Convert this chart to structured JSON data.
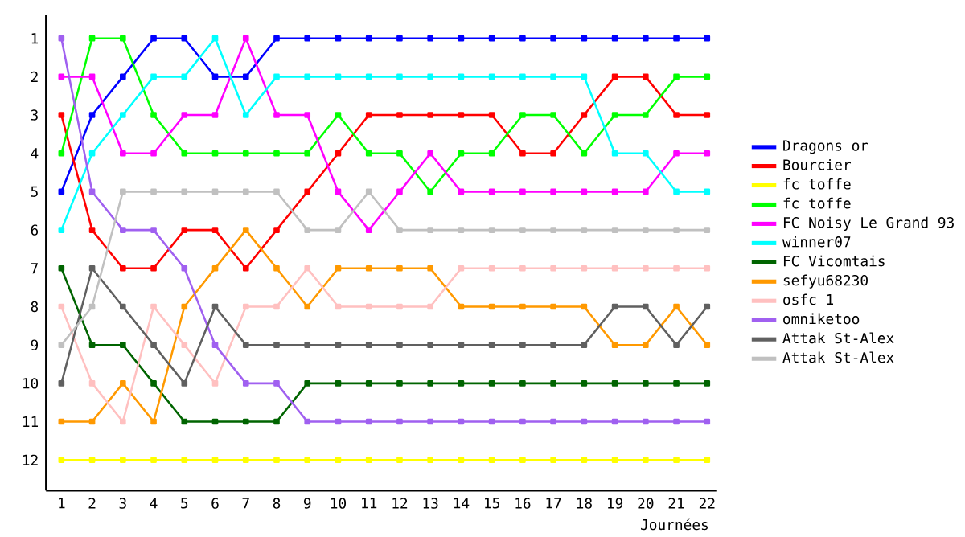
{
  "chart_data": {
    "type": "line",
    "xlabel": "Journées",
    "x": [
      1,
      2,
      3,
      4,
      5,
      6,
      7,
      8,
      9,
      10,
      11,
      12,
      13,
      14,
      15,
      16,
      17,
      18,
      19,
      20,
      21,
      22
    ],
    "xlim": [
      0.5,
      22.3
    ],
    "xticks": [
      1,
      2,
      3,
      4,
      5,
      6,
      7,
      8,
      9,
      10,
      11,
      12,
      13,
      14,
      15,
      16,
      17,
      18,
      19,
      20,
      21,
      22
    ],
    "ylim": [
      12.8,
      0.4
    ],
    "yticks": [
      1,
      2,
      3,
      4,
      5,
      6,
      7,
      8,
      9,
      10,
      11,
      12
    ],
    "marker": "square",
    "line_style": "solid",
    "legend": "right",
    "grid": false,
    "series": [
      {
        "name": "Dragons or",
        "color": "#0000ff",
        "values": [
          5,
          3,
          2,
          1,
          1,
          2,
          2,
          1,
          1,
          1,
          1,
          1,
          1,
          1,
          1,
          1,
          1,
          1,
          1,
          1,
          1,
          1
        ]
      },
      {
        "name": "Bourcier",
        "color": "#ff0000",
        "values": [
          3,
          6,
          7,
          7,
          6,
          6,
          7,
          6,
          5,
          4,
          3,
          3,
          3,
          3,
          3,
          4,
          4,
          3,
          2,
          2,
          3,
          3
        ]
      },
      {
        "name": "fc toffe",
        "color": "#ffff00",
        "values": [
          12,
          12,
          12,
          12,
          12,
          12,
          12,
          12,
          12,
          12,
          12,
          12,
          12,
          12,
          12,
          12,
          12,
          12,
          12,
          12,
          12,
          12
        ]
      },
      {
        "name": "fc toffe",
        "color": "#00ff00",
        "values": [
          4,
          1,
          1,
          3,
          4,
          4,
          4,
          4,
          4,
          3,
          4,
          4,
          5,
          4,
          4,
          3,
          3,
          4,
          3,
          3,
          2,
          2
        ]
      },
      {
        "name": "FC Noisy Le Grand 93",
        "color": "#ff00ff",
        "values": [
          2,
          2,
          4,
          4,
          3,
          3,
          1,
          3,
          3,
          5,
          6,
          5,
          4,
          5,
          5,
          5,
          5,
          5,
          5,
          5,
          4,
          4
        ]
      },
      {
        "name": "winner07",
        "color": "#00ffff",
        "values": [
          6,
          4,
          3,
          2,
          2,
          1,
          3,
          2,
          2,
          2,
          2,
          2,
          2,
          2,
          2,
          2,
          2,
          2,
          4,
          4,
          5,
          5
        ]
      },
      {
        "name": "FC Vicomtais",
        "color": "#006400",
        "values": [
          7,
          9,
          9,
          10,
          11,
          11,
          11,
          11,
          10,
          10,
          10,
          10,
          10,
          10,
          10,
          10,
          10,
          10,
          10,
          10,
          10,
          10
        ]
      },
      {
        "name": "sefyu68230",
        "color": "#ff9900",
        "values": [
          11,
          11,
          10,
          11,
          8,
          7,
          6,
          7,
          8,
          7,
          7,
          7,
          7,
          8,
          8,
          8,
          8,
          8,
          9,
          9,
          8,
          9
        ]
      },
      {
        "name": "osfc 1",
        "color": "#ffc0c0",
        "values": [
          8,
          10,
          11,
          8,
          9,
          10,
          8,
          8,
          7,
          8,
          8,
          8,
          8,
          7,
          7,
          7,
          7,
          7,
          7,
          7,
          7,
          7
        ]
      },
      {
        "name": "omniketoo",
        "color": "#a060f0",
        "values": [
          1,
          5,
          6,
          6,
          7,
          9,
          10,
          10,
          11,
          11,
          11,
          11,
          11,
          11,
          11,
          11,
          11,
          11,
          11,
          11,
          11,
          11
        ]
      },
      {
        "name": "Attak St-Alex",
        "color": "#606060",
        "values": [
          10,
          7,
          8,
          9,
          10,
          8,
          9,
          9,
          9,
          9,
          9,
          9,
          9,
          9,
          9,
          9,
          9,
          9,
          8,
          8,
          9,
          8
        ]
      },
      {
        "name": "Attak St-Alex",
        "color": "#c0c0c0",
        "values": [
          9,
          8,
          5,
          5,
          5,
          5,
          5,
          5,
          6,
          6,
          5,
          6,
          6,
          6,
          6,
          6,
          6,
          6,
          6,
          6,
          6,
          6
        ]
      }
    ]
  }
}
